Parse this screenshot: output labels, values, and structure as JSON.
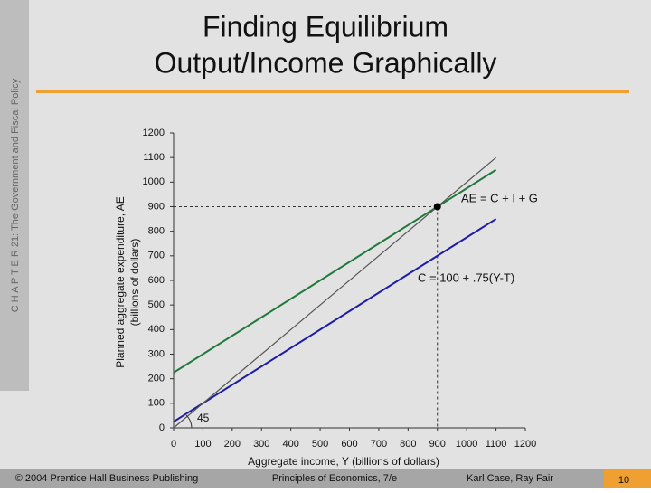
{
  "slide": {
    "sidebar": "C H A P T E R  21:  The Government and Fiscal Policy",
    "title_lines": [
      "Finding Equilibrium",
      "Output/Income Graphically"
    ],
    "footer": [
      "© 2004 Prentice Hall Business Publishing",
      "Principles of Economics, 7/e",
      "Karl Case, Ray Fair"
    ],
    "page": "10"
  },
  "chart_data": {
    "type": "line",
    "x_label": "Aggregate income, Y (billions of dollars)",
    "y_label_lines": [
      "Planned aggregate expenditure, AE",
      "(billions of dollars)"
    ],
    "x": [
      0,
      1100
    ],
    "series": [
      {
        "name": "AE = C + I + G",
        "color": "#1f7a3a",
        "values": [
          225,
          1050
        ]
      },
      {
        "name": "C = 100 + .75(Y-T)",
        "color": "#1c1ca8",
        "values": [
          25,
          850
        ]
      },
      {
        "color": "#555555",
        "values": [
          0,
          1100
        ]
      }
    ],
    "angle_label": "45",
    "equilibrium": {
      "x": 900,
      "y": 900
    },
    "xlim": [
      0,
      1200
    ],
    "ylim": [
      0,
      1200
    ],
    "xticks": [
      0,
      100,
      200,
      300,
      400,
      500,
      600,
      700,
      800,
      900,
      1000,
      1100,
      1200
    ],
    "yticks": [
      0,
      100,
      200,
      300,
      400,
      500,
      600,
      700,
      800,
      900,
      1000,
      1100,
      1200
    ],
    "grid": false
  }
}
